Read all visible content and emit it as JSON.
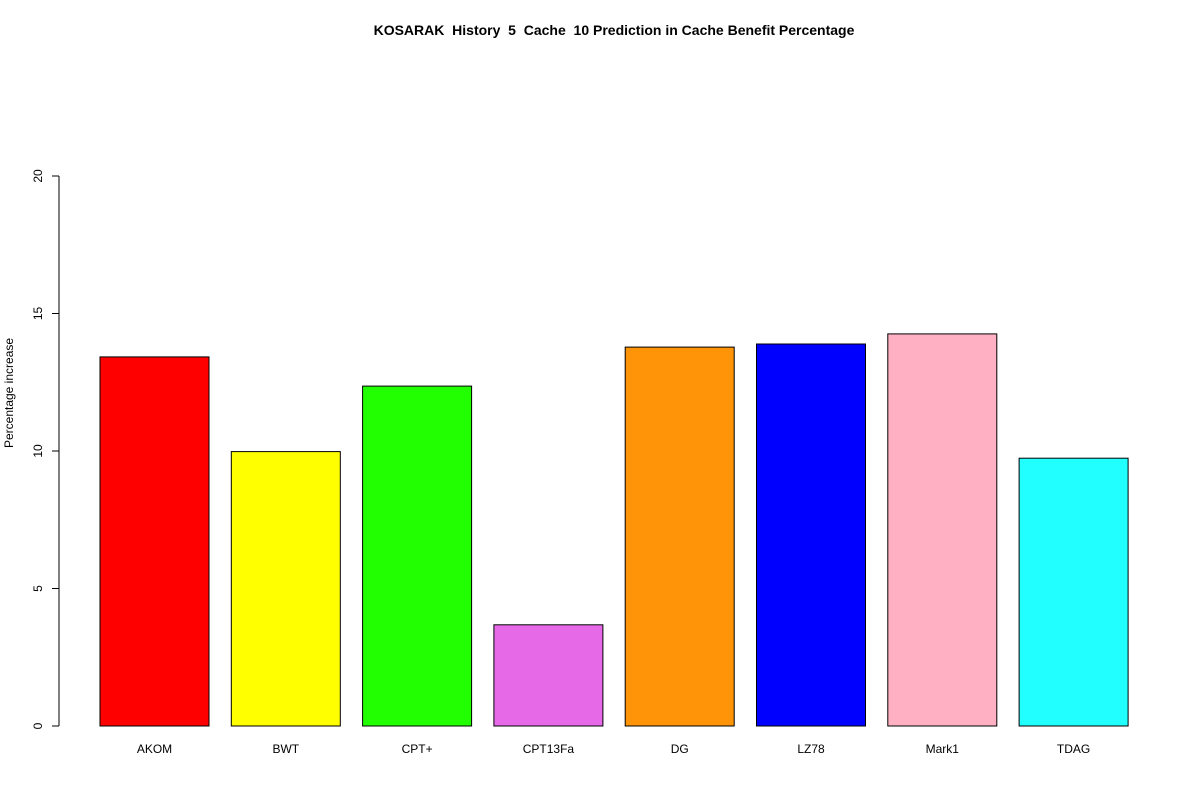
{
  "chart_data": {
    "type": "bar",
    "title": "KOSARAK  History  5  Cache  10 Prediction in Cache Benefit Percentage",
    "xlabel": "",
    "ylabel": "Percentage increase",
    "ylim": [
      0,
      20
    ],
    "yticks": [
      0,
      5,
      10,
      15,
      20
    ],
    "grid": false,
    "legend": "none",
    "categories": [
      "AKOM",
      "BWT",
      "CPT+",
      "CPT13Fa",
      "DG",
      "LZ78",
      "Mark1",
      "TDAG"
    ],
    "values": [
      13.42,
      9.98,
      12.36,
      3.68,
      13.78,
      13.89,
      14.26,
      9.74
    ],
    "colors": [
      "#ff0000",
      "#ffff00",
      "#22ff00",
      "#e66ae8",
      "#ff9408",
      "#0000ff",
      "#ffb1c3",
      "#22ffff"
    ]
  }
}
